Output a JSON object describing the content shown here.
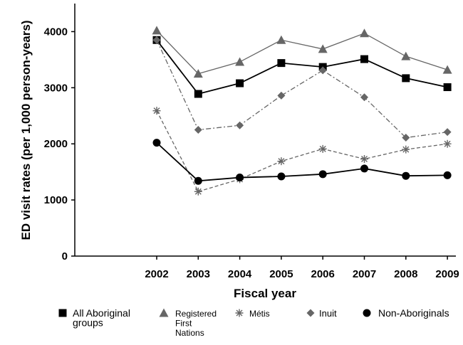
{
  "chart_data": {
    "type": "line",
    "title": "",
    "xlabel": "Fiscal year",
    "ylabel": "ED visit rates (per 1,000 person-years)",
    "x": [
      "2002",
      "2003",
      "2004",
      "2005",
      "2006",
      "2007",
      "2008",
      "2009"
    ],
    "ylim": [
      0,
      4500
    ],
    "yticks": [
      "0",
      "1000",
      "2000",
      "3000",
      "4000"
    ],
    "grid": false,
    "legend_position": "bottom",
    "series": [
      {
        "name": "All Aboriginal groups",
        "name_lines": [
          "All Aboriginal",
          "groups"
        ],
        "marker": "square",
        "line": "solid",
        "color": "#000000",
        "values": [
          3850,
          2890,
          3080,
          3440,
          3370,
          3510,
          3170,
          3010
        ]
      },
      {
        "name": "Registered First Nations",
        "name_lines": [
          "Registered",
          "First",
          "Nations"
        ],
        "marker": "triangle",
        "line": "solid",
        "color": "#666666",
        "values": [
          4020,
          3250,
          3460,
          3850,
          3690,
          3970,
          3560,
          3320
        ]
      },
      {
        "name": "Métis",
        "name_lines": [
          "Métis"
        ],
        "marker": "asterisk",
        "line": "dashed",
        "color": "#666666",
        "values": [
          2590,
          1150,
          1370,
          1690,
          1910,
          1730,
          1900,
          2000
        ]
      },
      {
        "name": "Inuit",
        "name_lines": [
          "Inuit"
        ],
        "marker": "diamond",
        "line": "dashdot",
        "color": "#666666",
        "values": [
          3850,
          2250,
          2330,
          2860,
          3310,
          2830,
          2110,
          2210
        ]
      },
      {
        "name": "Non-Aboriginals",
        "name_lines": [
          "Non-Aboriginals"
        ],
        "marker": "circle",
        "line": "solid",
        "color": "#000000",
        "values": [
          2020,
          1340,
          1400,
          1420,
          1460,
          1560,
          1430,
          1440
        ]
      }
    ]
  }
}
